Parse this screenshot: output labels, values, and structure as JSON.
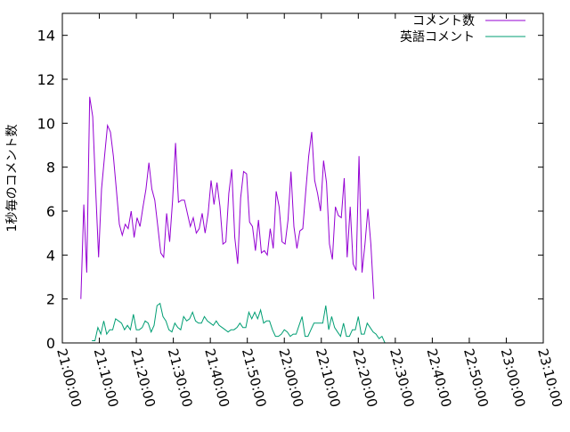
{
  "chart_data": {
    "type": "line",
    "title": "",
    "xlabel": "",
    "ylabel": "1秒毎のコメント数",
    "ylim": [
      0,
      15
    ],
    "yticks": [
      0,
      2,
      4,
      6,
      8,
      10,
      12,
      14
    ],
    "xlim_minutes_since_2100": [
      0,
      130
    ],
    "xticks": [
      {
        "label": "21:00:00",
        "minute": 0
      },
      {
        "label": "21:10:00",
        "minute": 10
      },
      {
        "label": "21:20:00",
        "minute": 20
      },
      {
        "label": "21:30:00",
        "minute": 30
      },
      {
        "label": "21:40:00",
        "minute": 40
      },
      {
        "label": "21:50:00",
        "minute": 50
      },
      {
        "label": "22:00:00",
        "minute": 60
      },
      {
        "label": "22:10:00",
        "minute": 70
      },
      {
        "label": "22:20:00",
        "minute": 80
      },
      {
        "label": "22:30:00",
        "minute": 90
      },
      {
        "label": "22:40:00",
        "minute": 100
      },
      {
        "label": "22:50:00",
        "minute": 110
      },
      {
        "label": "23:00:00",
        "minute": 120
      },
      {
        "label": "23:10:00",
        "minute": 130
      }
    ],
    "legend_position": "top-right",
    "grid": false,
    "series": [
      {
        "name": "コメント数",
        "color": "#9400d3",
        "x_start_minute": 5.0,
        "x_step_minute": 0.8,
        "values": [
          2.0,
          6.3,
          3.2,
          11.2,
          10.3,
          7.0,
          3.9,
          7.0,
          8.5,
          9.9,
          9.6,
          8.5,
          7.0,
          5.4,
          4.9,
          5.4,
          5.2,
          6.0,
          4.8,
          5.7,
          5.3,
          6.2,
          7.0,
          8.2,
          7.0,
          6.5,
          5.3,
          4.1,
          3.9,
          5.9,
          4.6,
          6.5,
          9.1,
          6.4,
          6.5,
          6.5,
          5.9,
          5.3,
          5.7,
          5.0,
          5.2,
          5.9,
          5.0,
          5.9,
          7.4,
          6.3,
          7.3,
          6.2,
          4.5,
          4.6,
          6.8,
          7.9,
          4.8,
          3.6,
          6.6,
          7.8,
          7.7,
          5.5,
          5.3,
          4.2,
          5.6,
          4.1,
          4.2,
          4.0,
          5.2,
          4.3,
          6.9,
          6.2,
          4.6,
          4.5,
          5.6,
          7.8,
          5.3,
          4.3,
          5.1,
          5.2,
          6.9,
          8.5,
          9.6,
          7.4,
          6.8,
          6.0,
          8.3,
          7.3,
          4.5,
          3.8,
          6.2,
          5.8,
          5.7,
          7.5,
          3.9,
          6.2,
          3.6,
          3.3,
          8.5,
          3.2,
          4.5,
          6.1,
          4.5,
          2.0
        ]
      },
      {
        "name": "英語コメント",
        "color": "#009e73",
        "x_start_minute": 8.0,
        "x_step_minute": 0.8,
        "values": [
          0.1,
          0.1,
          0.7,
          0.4,
          1.0,
          0.4,
          0.6,
          0.6,
          1.1,
          1.0,
          0.9,
          0.6,
          0.8,
          0.6,
          1.3,
          0.6,
          0.6,
          0.7,
          1.0,
          0.9,
          0.5,
          0.8,
          1.7,
          1.8,
          1.2,
          1.0,
          0.6,
          0.5,
          0.9,
          0.7,
          0.6,
          1.2,
          1.0,
          1.1,
          1.4,
          1.0,
          0.9,
          0.9,
          1.2,
          1.0,
          0.9,
          0.8,
          1.0,
          0.8,
          0.7,
          0.6,
          0.5,
          0.6,
          0.6,
          0.7,
          0.9,
          0.7,
          0.7,
          1.4,
          1.1,
          1.4,
          1.1,
          1.5,
          0.9,
          1.0,
          1.0,
          0.6,
          0.3,
          0.3,
          0.4,
          0.6,
          0.5,
          0.3,
          0.4,
          0.4,
          0.8,
          1.2,
          0.3,
          0.3,
          0.6,
          0.9,
          0.9,
          0.9,
          0.9,
          1.7,
          0.6,
          1.2,
          0.7,
          0.5,
          0.3,
          0.9,
          0.3,
          0.3,
          0.6,
          0.6,
          1.2,
          0.4,
          0.4,
          0.9,
          0.7,
          0.5,
          0.4,
          0.2,
          0.3,
          0.0
        ]
      }
    ]
  }
}
